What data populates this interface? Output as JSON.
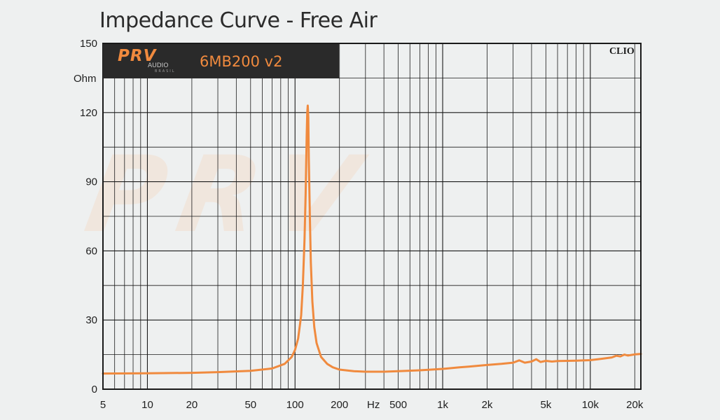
{
  "title": "Impedance Curve - Free Air",
  "brand": {
    "logo_main": "PRV",
    "logo_sub": "AUDIO",
    "logo_sub2": "BRASIL",
    "model": "6MB200 v2",
    "watermark": "PRV"
  },
  "clio_label": "CLIO",
  "colors": {
    "curve": "#f08a3e",
    "grid": "#1a1a1a",
    "background": "#eef0f0",
    "brand_box": "#2a2a2a"
  },
  "chart_data": {
    "type": "line",
    "title": "Impedance Curve - Free Air",
    "xscale": "log",
    "xlim": [
      5,
      22000
    ],
    "ylim": [
      0,
      150
    ],
    "ylabel": "Ohm",
    "xlabel": "Hz",
    "yticks": [
      {
        "value": 0,
        "label": "0"
      },
      {
        "value": 30,
        "label": "30"
      },
      {
        "value": 60,
        "label": "60"
      },
      {
        "value": 90,
        "label": "90"
      },
      {
        "value": 120,
        "label": "120"
      },
      {
        "value": 150,
        "label": "150"
      }
    ],
    "xticks": [
      {
        "value": 5,
        "label": "5"
      },
      {
        "value": 10,
        "label": "10"
      },
      {
        "value": 20,
        "label": "20"
      },
      {
        "value": 50,
        "label": "50"
      },
      {
        "value": 100,
        "label": "100"
      },
      {
        "value": 200,
        "label": "200"
      },
      {
        "value": 500,
        "label": "500"
      },
      {
        "value": 1000,
        "label": "1k"
      },
      {
        "value": 2000,
        "label": "2k"
      },
      {
        "value": 5000,
        "label": "5k"
      },
      {
        "value": 10000,
        "label": "10k"
      },
      {
        "value": 20000,
        "label": "20k"
      }
    ],
    "grid": true,
    "series": [
      {
        "color": "#f08a3e",
        "x": [
          5,
          10,
          20,
          30,
          50,
          70,
          85,
          95,
          100,
          105,
          110,
          113,
          116,
          118,
          120,
          121,
          122,
          123,
          124,
          126,
          128,
          131,
          135,
          140,
          150,
          165,
          180,
          200,
          250,
          300,
          400,
          500,
          700,
          1000,
          1300,
          1500,
          2000,
          2500,
          3000,
          3300,
          3600,
          4000,
          4300,
          4600,
          5000,
          5500,
          6000,
          7000,
          8000,
          10000,
          12000,
          14000,
          15000,
          16000,
          17000,
          18000,
          20000,
          22000
        ],
        "y": [
          6.8,
          6.9,
          7.1,
          7.4,
          8.0,
          9.0,
          11.0,
          14.0,
          17.0,
          22.0,
          32.0,
          45.0,
          65.0,
          85.0,
          110.0,
          120.0,
          123.0,
          118.0,
          100.0,
          75.0,
          55.0,
          38.0,
          27.0,
          20.0,
          14.0,
          11.0,
          9.5,
          8.5,
          7.8,
          7.6,
          7.6,
          7.8,
          8.2,
          8.8,
          9.5,
          9.8,
          10.5,
          11.0,
          11.5,
          12.5,
          11.5,
          12.0,
          13.0,
          11.8,
          12.3,
          12.0,
          12.2,
          12.3,
          12.4,
          12.6,
          13.2,
          13.8,
          14.5,
          14.2,
          15.0,
          14.6,
          15.1,
          15.3
        ]
      }
    ]
  }
}
